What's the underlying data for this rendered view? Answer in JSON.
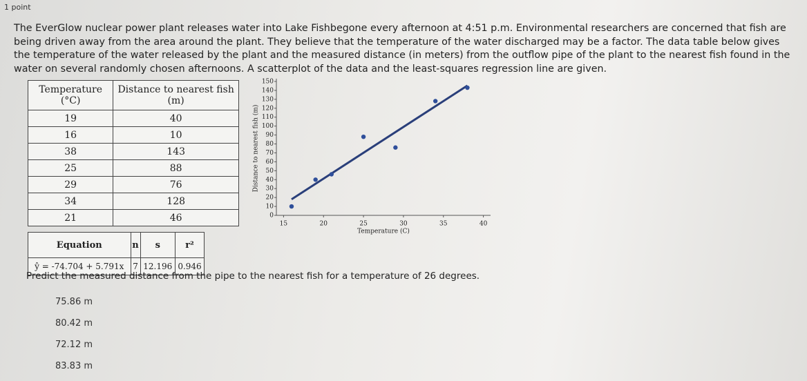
{
  "header": {
    "points": "1 point"
  },
  "question": {
    "text": "The EverGlow nuclear power plant releases water into Lake Fishbegone every afternoon at 4:51 p.m. Environmental researchers are concerned that fish are being driven away from the area around the plant. They believe that the temperature of the water discharged may be a factor. The data table below gives the temperature of the water released by the plant and the measured distance (in meters) from the outflow pipe of the plant to the nearest fish found in the water on several randomly chosen afternoons. A scatterplot of the data and the least-squares regression line are given."
  },
  "data_table": {
    "headers": [
      "Temperature (°C)",
      "Distance to nearest fish (m)"
    ],
    "rows": [
      [
        "19",
        "40"
      ],
      [
        "16",
        "10"
      ],
      [
        "38",
        "143"
      ],
      [
        "25",
        "88"
      ],
      [
        "29",
        "76"
      ],
      [
        "34",
        "128"
      ],
      [
        "21",
        "46"
      ]
    ]
  },
  "chart_data": {
    "type": "scatter",
    "x_label": "Temperature (C)",
    "y_label": "Distance to nearest fish (m)",
    "x": [
      19,
      16,
      38,
      25,
      29,
      34,
      21
    ],
    "values": [
      40,
      10,
      143,
      88,
      76,
      128,
      46
    ],
    "color": "#2f4f9a",
    "regression": {
      "intercept": -74.704,
      "slope": 5.791,
      "color": "#2a3f7a"
    },
    "xlim": [
      14.1,
      40.9
    ],
    "xticks": [
      15,
      20,
      25,
      30,
      35,
      40
    ],
    "ylim": [
      0,
      150
    ],
    "yticks": [
      0,
      10,
      20,
      30,
      40,
      50,
      60,
      70,
      80,
      90,
      100,
      110,
      120,
      130,
      140,
      150
    ]
  },
  "regression_table": {
    "headers": [
      "Equation",
      "n",
      "s",
      "r²"
    ],
    "row": [
      "ŷ = -74.704 + 5.791x",
      "7",
      "12.196",
      "0.946"
    ]
  },
  "prompt": "Predict the measured distance from the pipe to the nearest fish for a temperature of 26 degrees.",
  "options": [
    "75.86 m",
    "80.42 m",
    "72.12 m",
    "83.83 m"
  ]
}
